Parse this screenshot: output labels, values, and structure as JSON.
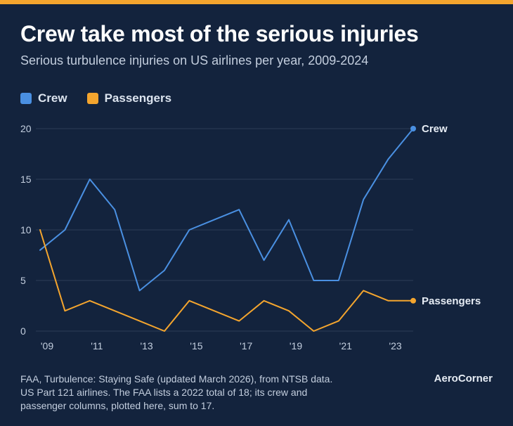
{
  "header": {
    "title": "Crew take most of the serious injuries",
    "subtitle": "Serious turbulence injuries on US airlines per year, 2009-2024"
  },
  "footer": {
    "source_line1": "FAA, Turbulence: Staying Safe (updated March 2026), from NTSB data.",
    "source_line2": "US Part 121 airlines. The FAA lists a 2022 total of 18; its crew and",
    "source_line3": "passenger columns, plotted here, sum to 17.",
    "brand": "AeroCorner"
  },
  "colors": {
    "background": "#13233d",
    "accent_bar": "#f4a52e",
    "crew": "#4a90e2",
    "passengers": "#f4a52e",
    "grid": "#2c3d58",
    "axis_text": "#c3cede"
  },
  "chart_data": {
    "type": "line",
    "x": [
      2009,
      2010,
      2011,
      2012,
      2013,
      2014,
      2015,
      2016,
      2017,
      2018,
      2019,
      2020,
      2021,
      2022,
      2023,
      2024
    ],
    "x_tick_values": [
      2009,
      2011,
      2013,
      2015,
      2017,
      2019,
      2021,
      2023
    ],
    "x_tick_labels": [
      "'09",
      "'11",
      "'13",
      "'15",
      "'17",
      "'19",
      "'21",
      "'23"
    ],
    "y_ticks": [
      0,
      5,
      10,
      15,
      20
    ],
    "ylim": [
      0,
      20
    ],
    "xlim": [
      2009,
      2024
    ],
    "grid": true,
    "legend_position": "top-left",
    "series": [
      {
        "name": "Crew",
        "end_label": "Crew",
        "color": "#4a90e2",
        "values": [
          8,
          10,
          15,
          12,
          4,
          6,
          10,
          11,
          12,
          7,
          11,
          5,
          5,
          13,
          17,
          20
        ]
      },
      {
        "name": "Passengers",
        "end_label": "Passengers",
        "color": "#f4a52e",
        "values": [
          10,
          2,
          3,
          2,
          1,
          0,
          3,
          2,
          1,
          3,
          2,
          0,
          1,
          4,
          3,
          3
        ]
      }
    ]
  }
}
